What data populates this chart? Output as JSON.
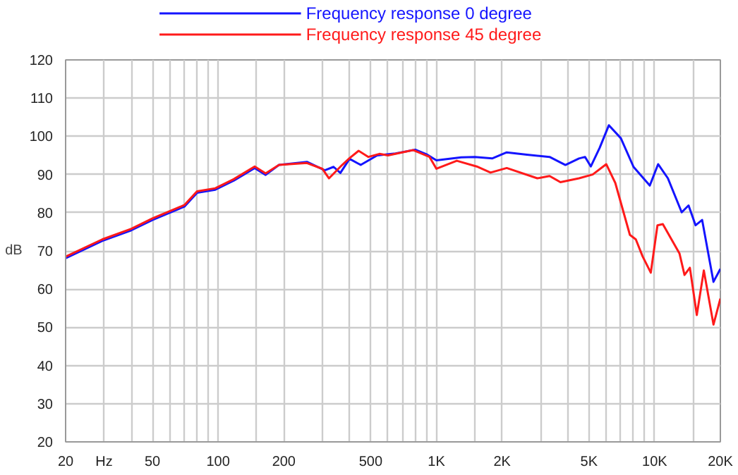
{
  "chart_data": {
    "type": "line",
    "ylabel": "dB",
    "log": "x",
    "grid": true,
    "legend": "top",
    "marker": "none",
    "line_style": "solid",
    "xlim": [
      20,
      20000
    ],
    "ylim": [
      20,
      120
    ],
    "xticks": [
      20,
      {
        "value": 30,
        "label": "Hz"
      },
      {
        "value": 40,
        "label": null
      },
      50,
      {
        "value": 60,
        "label": null
      },
      {
        "value": 70,
        "label": null
      },
      {
        "value": 80,
        "label": null
      },
      {
        "value": 90,
        "label": null
      },
      100,
      {
        "value": 150,
        "label": null
      },
      200,
      {
        "value": 300,
        "label": null
      },
      {
        "value": 400,
        "label": null
      },
      500,
      {
        "value": 600,
        "label": null
      },
      {
        "value": 700,
        "label": null
      },
      {
        "value": 800,
        "label": null
      },
      {
        "value": 900,
        "label": null
      },
      {
        "value": 1000,
        "label": "1K"
      },
      {
        "value": 1500,
        "label": null
      },
      {
        "value": 2000,
        "label": "2K"
      },
      {
        "value": 3000,
        "label": null
      },
      {
        "value": 4000,
        "label": null
      },
      {
        "value": 5000,
        "label": "5K"
      },
      {
        "value": 6000,
        "label": null
      },
      {
        "value": 7000,
        "label": null
      },
      {
        "value": 8000,
        "label": null
      },
      {
        "value": 9000,
        "label": null
      },
      {
        "value": 10000,
        "label": "10K"
      },
      {
        "value": 15000,
        "label": null
      },
      {
        "value": 20000,
        "label": "20K"
      }
    ],
    "yticks": [
      20,
      30,
      40,
      50,
      60,
      70,
      80,
      90,
      100,
      110,
      120
    ],
    "series": [
      {
        "name": "Frequency response 0 degree",
        "color": "#1414ff",
        "x": [
          20,
          29.4,
          40,
          50,
          70,
          80,
          97,
          118,
          147,
          165,
          190,
          255,
          308,
          338,
          363,
          400,
          450,
          535,
          650,
          800,
          900,
          1000,
          1300,
          1500,
          1800,
          2100,
          2600,
          3300,
          3900,
          4500,
          4800,
          5100,
          5600,
          6170,
          7000,
          8000,
          9500,
          10370,
          11500,
          13300,
          14300,
          15400,
          16500,
          18600,
          20000
        ],
        "values": [
          68.1,
          72.6,
          75.4,
          78.1,
          81.6,
          85.2,
          86,
          88.4,
          91.7,
          89.9,
          92.5,
          93.3,
          91.1,
          92,
          90.4,
          94.1,
          92.5,
          95,
          95.5,
          96.5,
          95.3,
          93.7,
          94.5,
          94.6,
          94.2,
          95.8,
          95.2,
          94.6,
          92.5,
          94.2,
          94.6,
          92.1,
          97,
          102.9,
          99.5,
          92,
          87.1,
          92.7,
          89,
          80.1,
          81.9,
          76.7,
          78.1,
          61.9,
          65.3
        ]
      },
      {
        "name": "Frequency response 45 degree",
        "color": "#ff1a1a",
        "x": [
          20,
          29.4,
          40,
          50,
          70,
          80,
          97,
          118,
          147,
          165,
          190,
          255,
          300,
          322,
          370,
          400,
          440,
          488,
          548,
          600,
          781,
          930,
          1000,
          1240,
          1530,
          1770,
          2100,
          2900,
          3300,
          3700,
          4500,
          5200,
          6000,
          6600,
          7700,
          8200,
          8800,
          9600,
          10300,
          10900,
          13000,
          13700,
          14500,
          15600,
          16800,
          18600,
          20000
        ],
        "values": [
          68.5,
          73,
          75.8,
          78.5,
          82,
          85.6,
          86.4,
          88.8,
          92.1,
          90.3,
          92.5,
          93,
          91.5,
          89,
          92.5,
          94.3,
          96.2,
          94.6,
          95.4,
          95,
          96.4,
          94.6,
          91.5,
          93.6,
          92.1,
          90.5,
          91.7,
          89,
          89.6,
          88,
          89,
          90,
          92.7,
          87.8,
          74.2,
          73,
          68.6,
          64.3,
          76.7,
          77,
          69.3,
          63.7,
          65.6,
          53.2,
          64.9,
          50.7,
          57.5
        ]
      }
    ]
  }
}
